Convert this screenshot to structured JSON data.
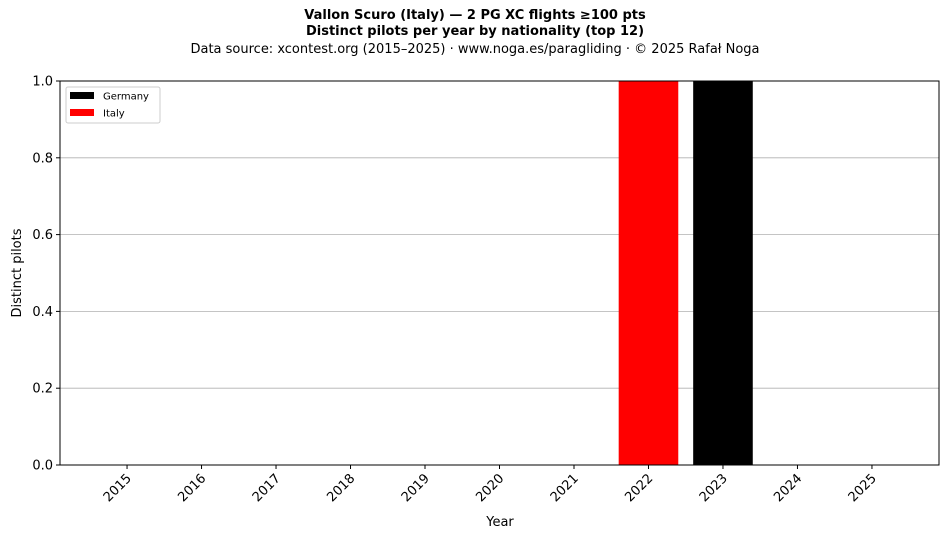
{
  "header": {
    "title_line1": "Vallon Scuro (Italy)  —  2 PG XC flights ≥100 pts",
    "title_line2": "Distinct pilots per year by nationality (top 12)",
    "subtitle": "Data source: xcontest.org (2015–2025)  ·  www.noga.es/paragliding  ·  © 2025 Rafał Noga"
  },
  "chart_data": {
    "type": "bar",
    "stacked": true,
    "title": "Vallon Scuro (Italy)  —  2 PG XC flights ≥100 pts",
    "subtitle": "Distinct pilots per year by nationality (top 12)",
    "xlabel": "Year",
    "ylabel": "Distinct pilots",
    "ylim": [
      0,
      1.0
    ],
    "yticks": [
      "0.0",
      "0.2",
      "0.4",
      "0.6",
      "0.8",
      "1.0"
    ],
    "categories": [
      "2015",
      "2016",
      "2017",
      "2018",
      "2019",
      "2020",
      "2021",
      "2022",
      "2023",
      "2024",
      "2025"
    ],
    "series": [
      {
        "name": "Germany",
        "color": "#000000",
        "values": [
          0,
          0,
          0,
          0,
          0,
          0,
          0,
          0,
          1,
          0,
          0
        ]
      },
      {
        "name": "Italy",
        "color": "#ff0000",
        "values": [
          0,
          0,
          0,
          0,
          0,
          0,
          0,
          1,
          0,
          0,
          0
        ]
      }
    ],
    "grid": "horizontal",
    "legend_position": "top-left"
  }
}
